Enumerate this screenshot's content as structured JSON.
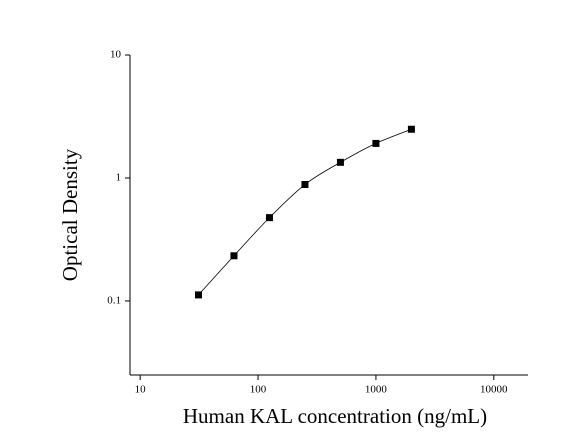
{
  "chart_data": {
    "type": "scatter",
    "x_label": "Human KAL concentration (ng/mL)",
    "y_label": "Optical Density",
    "x": [
      31.25,
      62.5,
      125,
      250,
      500,
      1000,
      2000
    ],
    "values": [
      0.112,
      0.233,
      0.476,
      0.885,
      1.34,
      1.91,
      2.49
    ],
    "color": "#000000",
    "fit_line": true,
    "xscale": "log",
    "yscale": "log",
    "xlim": [
      8.2,
      19500
    ],
    "ylim": [
      0.025,
      10
    ],
    "xticks": [
      10,
      100,
      1000,
      10000
    ],
    "yticks": [
      0.1,
      1,
      10
    ]
  }
}
